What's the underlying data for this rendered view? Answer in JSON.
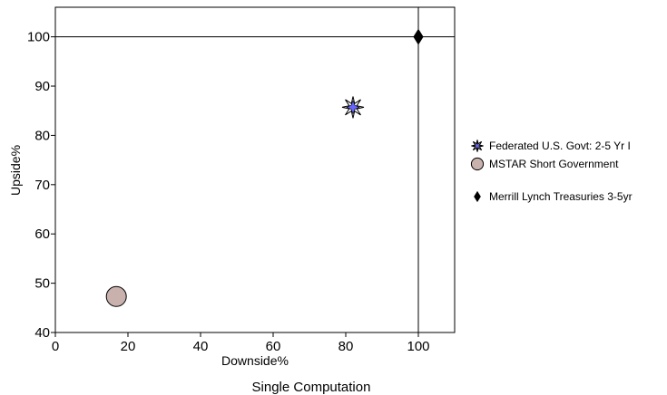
{
  "chart_data": {
    "type": "scatter",
    "title": "",
    "xlabel": "Downside%",
    "ylabel": "Upside%",
    "footer": "Single Computation",
    "xlim": [
      0,
      110
    ],
    "ylim": [
      40,
      106
    ],
    "xticks": [
      0,
      20,
      40,
      60,
      80,
      100
    ],
    "yticks": [
      40,
      50,
      60,
      70,
      80,
      90,
      100
    ],
    "grid": false,
    "reference_lines": {
      "x": 100,
      "y": 100
    },
    "legend_position": "right",
    "series": [
      {
        "name": "Federated U.S. Govt: 2-5 Yr I",
        "x": 82,
        "y": 85.7,
        "marker": "star-burst",
        "color": "#6666ff"
      },
      {
        "name": "MSTAR Short Government",
        "x": 16.8,
        "y": 47.3,
        "marker": "circle",
        "color": "#c9b1ae"
      },
      {
        "name": "Merrill Lynch Treasuries 3-5yr",
        "x": 100,
        "y": 100,
        "marker": "diamond",
        "color": "#000000"
      }
    ]
  }
}
